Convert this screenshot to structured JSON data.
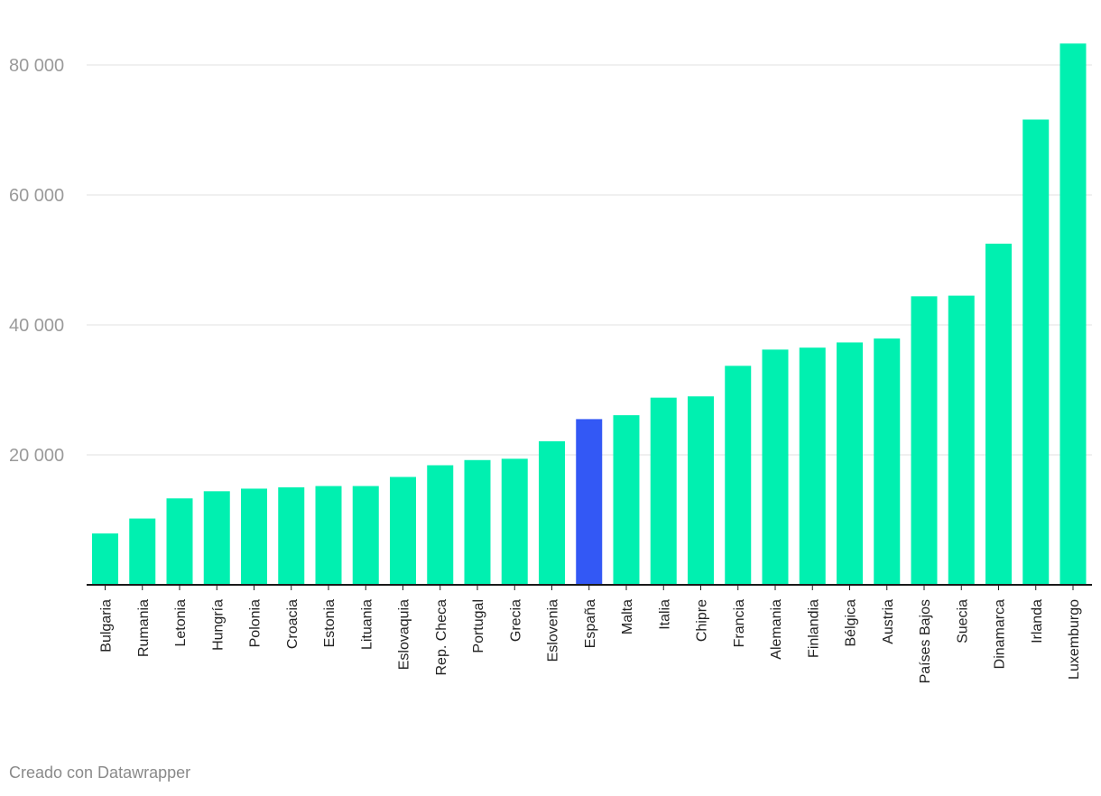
{
  "chart_data": {
    "type": "bar",
    "title": "",
    "xlabel": "",
    "ylabel": "",
    "ylim": [
      0,
      85000
    ],
    "yticks": [
      20000,
      40000,
      60000,
      80000
    ],
    "ytick_labels": [
      "20 000",
      "40 000",
      "60 000",
      "80 000"
    ],
    "grid": true,
    "legend": "none",
    "categories": [
      "Bulgaria",
      "Rumania",
      "Letonia",
      "Hungría",
      "Polonia",
      "Croacia",
      "Estonia",
      "Lituania",
      "Eslovaquia",
      "Rep. Checa",
      "Portugal",
      "Grecia",
      "Eslovenia",
      "España",
      "Malta",
      "Italia",
      "Chipre",
      "Francia",
      "Alemania",
      "Finlandia",
      "Bélgica",
      "Austria",
      "Países Bajos",
      "Suecia",
      "Dinamarca",
      "Irlanda",
      "Luxemburgo"
    ],
    "values": [
      7900,
      10200,
      13300,
      14400,
      14800,
      15000,
      15200,
      15200,
      16600,
      18400,
      19200,
      19400,
      22100,
      25500,
      26100,
      28800,
      29000,
      33700,
      36200,
      36500,
      37300,
      37900,
      44400,
      44500,
      52500,
      71600,
      83300
    ],
    "highlight_category": "España",
    "colors": {
      "bar": "#00f0b0",
      "highlight": "#3358f5"
    }
  },
  "footer": {
    "credit": "Creado con Datawrapper"
  }
}
